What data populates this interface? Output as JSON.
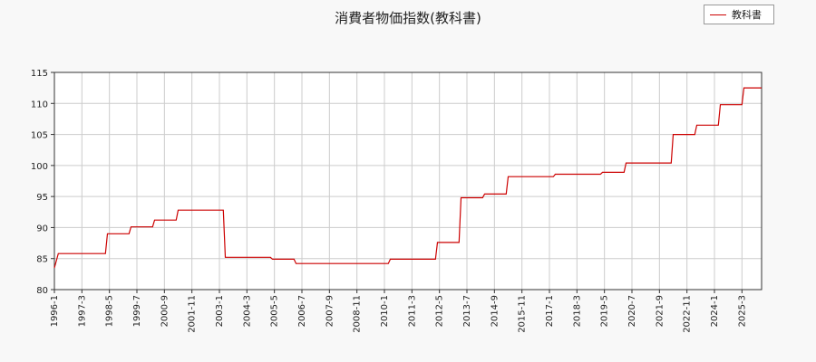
{
  "chart_data": {
    "type": "line",
    "title": "消費者物価指数(教科書)",
    "xlabel": "",
    "ylabel": "",
    "ylim": [
      80,
      115
    ],
    "yticks": [
      80,
      85,
      90,
      95,
      100,
      105,
      110,
      115
    ],
    "xticks": [
      "1996-1",
      "1997-3",
      "1998-5",
      "1999-7",
      "2000-9",
      "2001-11",
      "2003-1",
      "2004-3",
      "2005-5",
      "2006-7",
      "2007-9",
      "2008-11",
      "2010-1",
      "2011-3",
      "2012-5",
      "2013-7",
      "2014-9",
      "2015-11",
      "2017-1",
      "2018-3",
      "2019-5",
      "2020-7",
      "2021-9",
      "2022-11",
      "2024-1",
      "2025-3"
    ],
    "grid": true,
    "legend_position": "top-right",
    "series": [
      {
        "name": "教科書",
        "color": "#cc0000",
        "points": [
          [
            "1996-1",
            83.5
          ],
          [
            "1996-3",
            85.8
          ],
          [
            "1998-3",
            85.8
          ],
          [
            "1998-4",
            89.0
          ],
          [
            "1999-3",
            89.0
          ],
          [
            "1999-4",
            90.1
          ],
          [
            "2000-3",
            90.1
          ],
          [
            "2000-4",
            91.2
          ],
          [
            "2001-3",
            91.2
          ],
          [
            "2001-4",
            92.8
          ],
          [
            "2003-3",
            92.8
          ],
          [
            "2003-4",
            85.2
          ],
          [
            "2005-3",
            85.2
          ],
          [
            "2005-4",
            84.9
          ],
          [
            "2006-3",
            84.9
          ],
          [
            "2006-4",
            84.2
          ],
          [
            "2010-3",
            84.2
          ],
          [
            "2010-4",
            84.9
          ],
          [
            "2012-3",
            84.9
          ],
          [
            "2012-4",
            87.6
          ],
          [
            "2013-3",
            87.6
          ],
          [
            "2013-4",
            94.8
          ],
          [
            "2014-3",
            94.8
          ],
          [
            "2014-4",
            95.4
          ],
          [
            "2015-3",
            95.4
          ],
          [
            "2015-4",
            98.2
          ],
          [
            "2017-3",
            98.2
          ],
          [
            "2017-4",
            98.6
          ],
          [
            "2019-3",
            98.6
          ],
          [
            "2019-4",
            98.9
          ],
          [
            "2020-3",
            98.9
          ],
          [
            "2020-4",
            100.4
          ],
          [
            "2022-3",
            100.4
          ],
          [
            "2022-4",
            105.0
          ],
          [
            "2023-3",
            105.0
          ],
          [
            "2023-4",
            106.5
          ],
          [
            "2024-3",
            106.5
          ],
          [
            "2024-4",
            109.8
          ],
          [
            "2025-3",
            109.8
          ],
          [
            "2025-4",
            112.5
          ],
          [
            "2026-1",
            112.5
          ]
        ]
      }
    ]
  }
}
